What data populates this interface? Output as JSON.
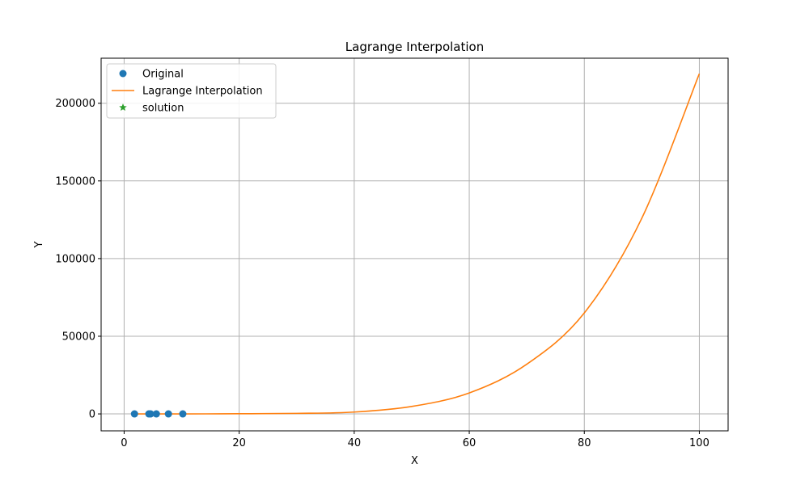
{
  "chart_data": {
    "type": "line",
    "title": "Lagrange Interpolation",
    "xlabel": "X",
    "ylabel": "Y",
    "xlim": [
      -4,
      105
    ],
    "ylim": [
      -10900,
      229000
    ],
    "xticks": [
      0,
      20,
      40,
      60,
      80,
      100
    ],
    "yticks": [
      0,
      50000,
      100000,
      150000,
      200000
    ],
    "grid": true,
    "legend_position": "top-left",
    "series": [
      {
        "name": "Original",
        "kind": "scatter",
        "marker": "circle",
        "color": "#1f77b4",
        "x": [
          1.8,
          4.3,
          4.6,
          5.6,
          7.7,
          10.2
        ],
        "y": [
          0,
          0,
          0,
          0,
          0,
          0
        ]
      },
      {
        "name": "Lagrange Interpolation",
        "kind": "line",
        "color": "#ff7f0e",
        "x": [
          1.8,
          10,
          20,
          30,
          40,
          50,
          60,
          70,
          80,
          90,
          100
        ],
        "y": [
          0,
          0,
          100,
          350,
          1200,
          4800,
          13500,
          32000,
          65000,
          126000,
          219000
        ]
      },
      {
        "name": "solution",
        "kind": "scatter",
        "marker": "star",
        "color": "#2ca02c",
        "x": [],
        "y": []
      }
    ]
  }
}
